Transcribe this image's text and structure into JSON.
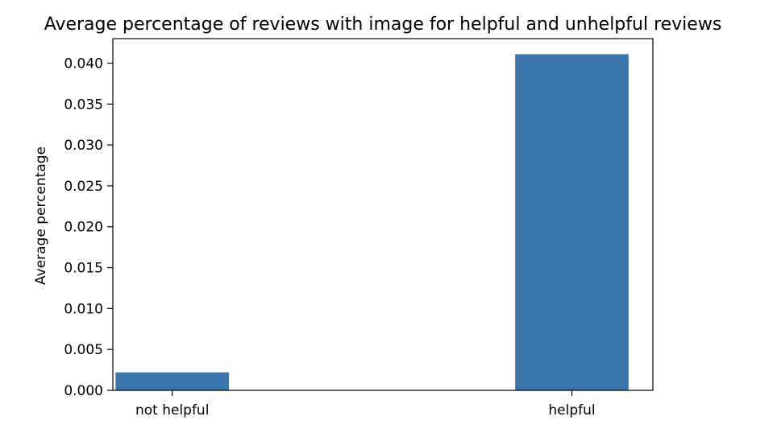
{
  "chart_data": {
    "type": "bar",
    "title": "Average percentage of reviews with image for helpful and unhelpful reviews",
    "xlabel": "",
    "ylabel": "Average percentage",
    "categories": [
      "not helpful",
      "helpful"
    ],
    "values": [
      0.0022,
      0.0411
    ],
    "ylim": [
      0,
      0.043
    ],
    "yticks": [
      "0.000",
      "0.005",
      "0.010",
      "0.015",
      "0.020",
      "0.025",
      "0.030",
      "0.035",
      "0.040"
    ],
    "bar_color": "#3a75ae",
    "grid": false,
    "legend": "none"
  }
}
